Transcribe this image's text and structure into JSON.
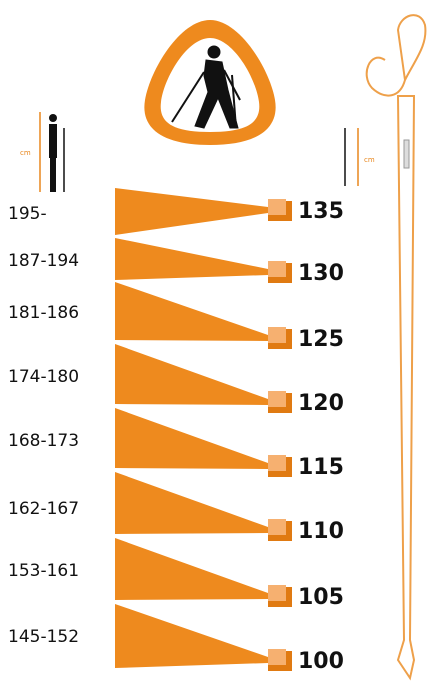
{
  "rows": [
    {
      "height": "195-",
      "pole": 135
    },
    {
      "height": "187-194",
      "pole": 130
    },
    {
      "height": "181-186",
      "pole": 125
    },
    {
      "height": "174-180",
      "pole": 120
    },
    {
      "height": "168-173",
      "pole": 115
    },
    {
      "height": "162-167",
      "pole": 110
    },
    {
      "height": "153-161",
      "pole": 105
    },
    {
      "height": "145-152",
      "pole": 100
    }
  ],
  "left_unit": "cm",
  "right_unit": "cm"
}
